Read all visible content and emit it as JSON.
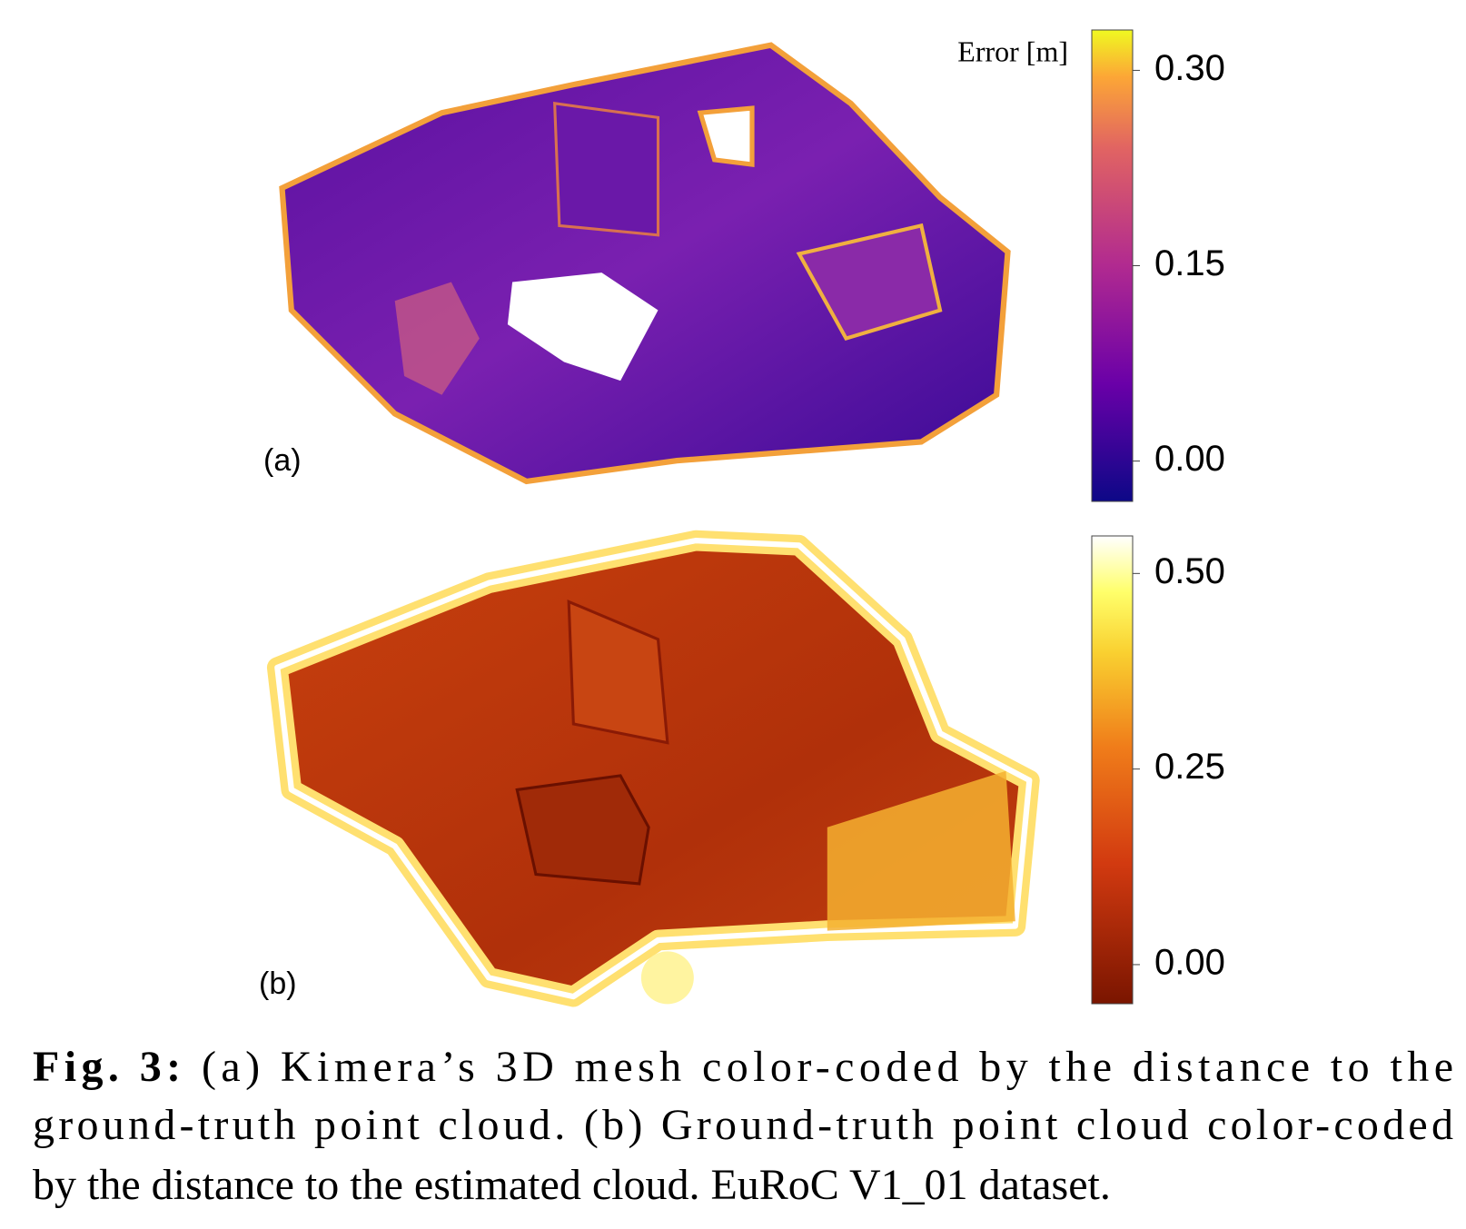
{
  "figure": {
    "panels": [
      {
        "label": "(a)",
        "colorbar": {
          "title": "Error [m]",
          "lim": [
            -0.031,
            0.331
          ],
          "ticks": [
            {
              "value": 0.3,
              "label": "0.30"
            },
            {
              "value": 0.15,
              "label": "0.15"
            },
            {
              "value": 0,
              "label": "0.00"
            }
          ]
        }
      },
      {
        "label": "(b)",
        "colorbar": {
          "lim": [
            -0.05,
            0.548
          ],
          "ticks": [
            {
              "value": 0.5,
              "label": "0.50"
            },
            {
              "value": 0.25,
              "label": "0.25"
            },
            {
              "value": 0,
              "label": "0.00"
            }
          ]
        }
      }
    ],
    "caption": {
      "label": "Fig. 3:",
      "lines": [
        " (a) Kimera’s 3D mesh color-coded by the distance to the",
        "ground-truth point cloud. (b) Ground-truth point cloud color-coded",
        "by the distance to the estimated cloud. EuRoC V1_01 dataset."
      ]
    }
  }
}
